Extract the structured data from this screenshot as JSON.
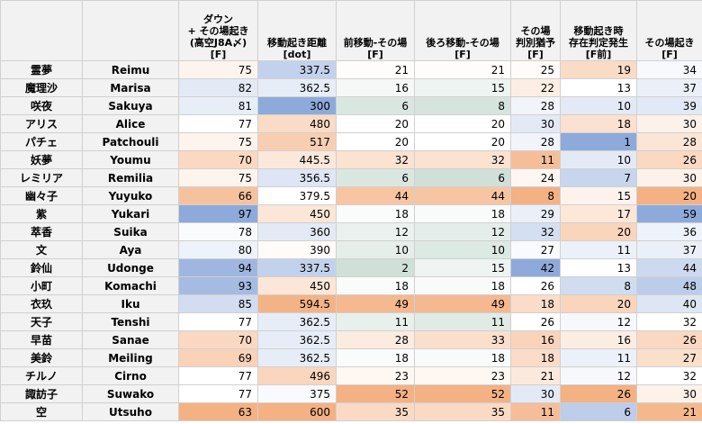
{
  "columns": [
    {
      "lines": [
        ""
      ]
    },
    {
      "lines": [
        ""
      ]
    },
    {
      "lines": [
        "ダウン",
        "+ その場起き",
        "(高空J8A〆)",
        "[F]"
      ]
    },
    {
      "lines": [
        "移動起き距離",
        "[dot]"
      ]
    },
    {
      "lines": [
        "前移動-その場",
        "[F]"
      ]
    },
    {
      "lines": [
        "後ろ移動-その場",
        "[F]"
      ]
    },
    {
      "lines": [
        "その場",
        "判別猶予",
        "[F]"
      ]
    },
    {
      "lines": [
        "移動起き時",
        "存在判定発生",
        "[F前]"
      ]
    },
    {
      "lines": [
        "その場起き",
        "[F]"
      ]
    }
  ],
  "rows": [
    {
      "jp": "霊夢",
      "en": "Reimu",
      "vals": [
        "75",
        "337.5",
        "21",
        "21",
        "25",
        "19",
        "34"
      ]
    },
    {
      "jp": "魔理沙",
      "en": "Marisa",
      "vals": [
        "82",
        "362.5",
        "16",
        "15",
        "22",
        "13",
        "37"
      ]
    },
    {
      "jp": "咲夜",
      "en": "Sakuya",
      "vals": [
        "81",
        "300",
        "6",
        "8",
        "28",
        "10",
        "39"
      ]
    },
    {
      "jp": "アリス",
      "en": "Alice",
      "vals": [
        "77",
        "480",
        "20",
        "20",
        "30",
        "18",
        "30"
      ]
    },
    {
      "jp": "パチェ",
      "en": "Patchouli",
      "vals": [
        "75",
        "517",
        "20",
        "20",
        "28",
        "1",
        "28"
      ]
    },
    {
      "jp": "妖夢",
      "en": "Youmu",
      "vals": [
        "70",
        "445.5",
        "32",
        "32",
        "11",
        "10",
        "26"
      ]
    },
    {
      "jp": "レミリア",
      "en": "Remilia",
      "vals": [
        "75",
        "356.5",
        "6",
        "6",
        "24",
        "7",
        "30"
      ]
    },
    {
      "jp": "幽々子",
      "en": "Yuyuko",
      "vals": [
        "66",
        "379.5",
        "44",
        "44",
        "8",
        "15",
        "20"
      ]
    },
    {
      "jp": "紫",
      "en": "Yukari",
      "vals": [
        "97",
        "450",
        "18",
        "18",
        "29",
        "17",
        "59"
      ]
    },
    {
      "jp": "萃香",
      "en": "Suika",
      "vals": [
        "78",
        "360",
        "12",
        "12",
        "32",
        "20",
        "36"
      ]
    },
    {
      "jp": "文",
      "en": "Aya",
      "vals": [
        "80",
        "390",
        "10",
        "10",
        "27",
        "11",
        "37"
      ]
    },
    {
      "jp": "鈴仙",
      "en": "Udonge",
      "vals": [
        "94",
        "337.5",
        "2",
        "15",
        "42",
        "13",
        "44"
      ]
    },
    {
      "jp": "小町",
      "en": "Komachi",
      "vals": [
        "93",
        "450",
        "18",
        "18",
        "26",
        "8",
        "48"
      ]
    },
    {
      "jp": "衣玖",
      "en": "Iku",
      "vals": [
        "85",
        "594.5",
        "49",
        "49",
        "18",
        "20",
        "40"
      ]
    },
    {
      "jp": "天子",
      "en": "Tenshi",
      "vals": [
        "77",
        "362.5",
        "11",
        "11",
        "26",
        "12",
        "32"
      ]
    },
    {
      "jp": "早苗",
      "en": "Sanae",
      "vals": [
        "70",
        "362.5",
        "28",
        "33",
        "16",
        "16",
        "26"
      ]
    },
    {
      "jp": "美鈴",
      "en": "Meiling",
      "vals": [
        "69",
        "362.5",
        "18",
        "18",
        "18",
        "11",
        "27"
      ]
    },
    {
      "jp": "チルノ",
      "en": "Cirno",
      "vals": [
        "77",
        "496",
        "23",
        "23",
        "21",
        "12",
        "32"
      ]
    },
    {
      "jp": "諏訪子",
      "en": "Suwako",
      "vals": [
        "77",
        "375",
        "52",
        "52",
        "30",
        "26",
        "30"
      ]
    },
    {
      "jp": "空",
      "en": "Utsuho",
      "vals": [
        "63",
        "600",
        "35",
        "35",
        "11",
        "6",
        "21"
      ]
    }
  ],
  "colors": {
    "high_blue": "#8eaadb",
    "low_orange": "#f4b183",
    "mid_white": "#ffffff",
    "low_green": "#d0e0d8",
    "header_bg": "#f2f2f2"
  }
}
